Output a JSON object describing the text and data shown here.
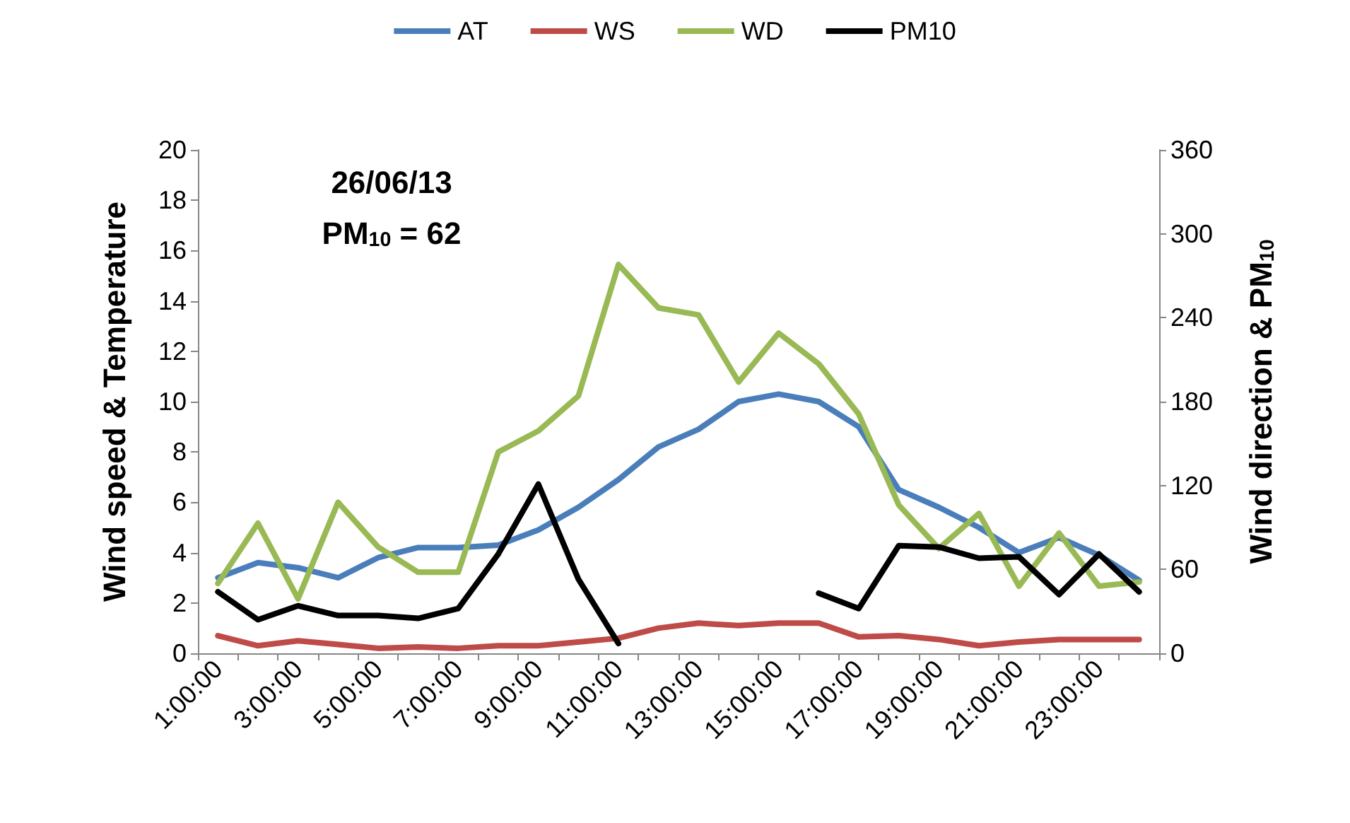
{
  "chart_data": {
    "type": "line",
    "categories": [
      "1:00:00",
      null,
      "3:00:00",
      null,
      "5:00:00",
      null,
      "7:00:00",
      null,
      "9:00:00",
      null,
      "11:00:00",
      null,
      "13:00:00",
      null,
      "15:00:00",
      null,
      "17:00:00",
      null,
      "19:00:00",
      null,
      "21:00:00",
      null,
      "23:00:00",
      null
    ],
    "series": [
      {
        "name": "AT",
        "color": "#4a7ebb",
        "values": [
          3.0,
          3.6,
          3.4,
          3.0,
          3.8,
          4.2,
          4.2,
          4.3,
          4.9,
          5.8,
          6.9,
          8.2,
          8.9,
          10.0,
          10.3,
          10.0,
          9.0,
          6.5,
          5.8,
          5.0,
          4.0,
          4.6,
          3.9,
          2.9
        ]
      },
      {
        "name": "WS",
        "color": "#be4b48",
        "values": [
          0.7,
          0.3,
          0.5,
          0.35,
          0.2,
          0.25,
          0.2,
          0.3,
          0.3,
          0.45,
          0.6,
          1.0,
          1.2,
          1.1,
          1.2,
          1.2,
          0.65,
          0.7,
          0.55,
          0.3,
          0.45,
          0.55,
          0.55,
          0.55
        ]
      },
      {
        "name": "WD",
        "color": "#98b954",
        "axis": "y2",
        "values": [
          50,
          93,
          39,
          108,
          76,
          58,
          58,
          144,
          159,
          184,
          278,
          247,
          242,
          194,
          229,
          207,
          171,
          106,
          75,
          100,
          48,
          86,
          48,
          51
        ]
      },
      {
        "name": "PM10",
        "color": "#000000",
        "axis": "y2",
        "values": [
          44,
          24,
          34,
          27,
          27,
          25,
          32,
          71,
          121,
          53,
          7,
          null,
          null,
          null,
          null,
          43,
          32,
          77,
          76,
          68,
          69,
          42,
          71,
          44
        ]
      }
    ],
    "ylabel": "Wind speed & Temperature",
    "y2label": "Wind direction & PM$_{10}$",
    "ylim": [
      0,
      20
    ],
    "yticks": [
      0,
      2,
      4,
      6,
      8,
      10,
      12,
      14,
      16,
      18,
      20
    ],
    "y2lim": [
      0,
      360
    ],
    "y2ticks": [
      0,
      60,
      120,
      180,
      240,
      300,
      360
    ],
    "annotations": [
      "26/06/13",
      "PM$_{10}$ = 62"
    ],
    "legend": "top",
    "grid": false,
    "marker": "none",
    "line_style": "solid"
  }
}
